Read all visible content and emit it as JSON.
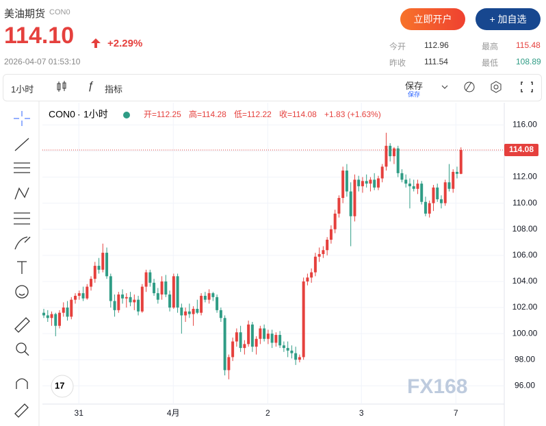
{
  "header": {
    "title": "美油期货",
    "code": "CON0",
    "price": "114.10",
    "change": "+2.29%",
    "timestamp": "2026-04-07 01:53:10",
    "open_account": "立即开户",
    "add_watch": "+ 加自选",
    "stats": [
      {
        "label": "今开",
        "value": "112.96"
      },
      {
        "label": "最高",
        "value": "115.48"
      },
      {
        "label": "昨收",
        "value": "111.54"
      },
      {
        "label": "最低",
        "value": "108.89"
      }
    ]
  },
  "toolbar": {
    "interval": "1小时",
    "indicators": "指标",
    "save": "保存",
    "save_sub": "保存"
  },
  "watermark": "FX168",
  "chart_data": {
    "type": "candlestick",
    "symbol": "CON0",
    "interval": "1小时",
    "legend": [
      "开=112.25",
      "高=114.28",
      "低=112.22",
      "收=114.08",
      "+1.83 (+1.63%)"
    ],
    "last_price": 114.08,
    "up_color": "#e5403d",
    "down_color": "#2f9c85",
    "ylim": [
      94.6,
      117.7
    ],
    "yticks": [
      {
        "value": 96,
        "label": "96.00"
      },
      {
        "value": 98,
        "label": "98.00"
      },
      {
        "value": 100,
        "label": "100.00"
      },
      {
        "value": 102,
        "label": "102.00"
      },
      {
        "value": 104,
        "label": "104.00"
      },
      {
        "value": 106,
        "label": "106.00"
      },
      {
        "value": 108,
        "label": "108.00"
      },
      {
        "value": 110,
        "label": "110.00"
      },
      {
        "value": 112,
        "label": "112.00"
      },
      {
        "value": 114,
        "label": "114.00"
      },
      {
        "value": 116,
        "label": "116.00"
      }
    ],
    "xlim": [
      -0.35,
      117
    ],
    "xticks": [
      {
        "value": 8.9,
        "label": "31"
      },
      {
        "value": 32.9,
        "label": "4月"
      },
      {
        "value": 56.9,
        "label": "2"
      },
      {
        "value": 80.7,
        "label": "3"
      },
      {
        "value": 104.7,
        "label": "7"
      }
    ],
    "grid": true,
    "candles": [
      [
        101.6,
        101.9,
        101.2,
        101.4
      ],
      [
        101.4,
        101.8,
        100.9,
        101.2
      ],
      [
        101.2,
        101.7,
        100.6,
        101.5
      ],
      [
        101.5,
        101.6,
        99.8,
        100.6
      ],
      [
        100.6,
        101.8,
        100.4,
        101.6
      ],
      [
        101.6,
        102.4,
        101.3,
        102.0
      ],
      [
        102.0,
        102.5,
        101.0,
        101.3
      ],
      [
        101.3,
        102.8,
        101.1,
        102.6
      ],
      [
        102.6,
        103.1,
        102.3,
        102.9
      ],
      [
        102.9,
        103.3,
        102.6,
        103.1
      ],
      [
        103.1,
        103.6,
        102.5,
        102.7
      ],
      [
        102.7,
        103.8,
        102.6,
        103.6
      ],
      [
        103.6,
        104.4,
        103.3,
        104.2
      ],
      [
        104.2,
        105.5,
        103.9,
        105.2
      ],
      [
        105.2,
        105.8,
        104.6,
        104.9
      ],
      [
        104.9,
        106.9,
        104.7,
        106.2
      ],
      [
        106.2,
        106.6,
        104.2,
        104.4
      ],
      [
        104.4,
        104.6,
        102.0,
        102.5
      ],
      [
        102.5,
        103.0,
        101.3,
        101.8
      ],
      [
        101.8,
        103.2,
        101.6,
        103.0
      ],
      [
        103.0,
        103.4,
        102.3,
        102.7
      ],
      [
        102.7,
        103.1,
        102.0,
        102.8
      ],
      [
        102.8,
        103.2,
        102.1,
        102.4
      ],
      [
        102.4,
        103.0,
        101.8,
        102.6
      ],
      [
        102.6,
        102.9,
        101.4,
        101.7
      ],
      [
        101.7,
        103.8,
        101.6,
        103.6
      ],
      [
        103.6,
        104.9,
        103.2,
        104.7
      ],
      [
        104.7,
        104.9,
        103.6,
        103.9
      ],
      [
        103.9,
        104.2,
        102.9,
        103.1
      ],
      [
        103.1,
        103.5,
        102.3,
        102.6
      ],
      [
        103.0,
        104.4,
        102.6,
        104.0
      ],
      [
        104.0,
        104.5,
        102.8,
        103.0
      ],
      [
        103.0,
        103.3,
        101.7,
        102.0
      ],
      [
        102.0,
        104.6,
        101.9,
        104.4
      ],
      [
        104.4,
        104.6,
        101.6,
        102.0
      ],
      [
        102.0,
        102.3,
        100.0,
        101.4
      ],
      [
        101.4,
        102.0,
        100.9,
        101.7
      ],
      [
        101.7,
        102.3,
        101.2,
        101.5
      ],
      [
        101.5,
        102.1,
        100.6,
        101.9
      ],
      [
        101.9,
        102.6,
        101.5,
        101.6
      ],
      [
        101.6,
        103.1,
        101.4,
        102.9
      ],
      [
        102.9,
        103.2,
        102.4,
        102.6
      ],
      [
        102.6,
        103.4,
        102.3,
        103.1
      ],
      [
        103.1,
        103.2,
        102.5,
        102.8
      ],
      [
        102.8,
        103.0,
        101.6,
        101.8
      ],
      [
        101.8,
        102.0,
        100.9,
        101.2
      ],
      [
        101.2,
        101.4,
        96.8,
        97.2
      ],
      [
        97.2,
        98.4,
        96.5,
        98.2
      ],
      [
        98.2,
        99.7,
        97.9,
        99.4
      ],
      [
        99.4,
        100.4,
        99.0,
        100.1
      ],
      [
        100.1,
        100.6,
        98.6,
        98.9
      ],
      [
        98.9,
        99.5,
        98.4,
        99.2
      ],
      [
        99.2,
        101.0,
        99.0,
        100.7
      ],
      [
        100.7,
        100.9,
        98.6,
        99.0
      ],
      [
        99.0,
        99.8,
        98.4,
        99.6
      ],
      [
        99.6,
        100.6,
        99.2,
        100.4
      ],
      [
        100.4,
        100.7,
        99.4,
        99.6
      ],
      [
        99.6,
        100.3,
        99.2,
        100.0
      ],
      [
        100.0,
        100.3,
        98.9,
        99.3
      ],
      [
        99.3,
        100.1,
        99.0,
        99.9
      ],
      [
        99.9,
        100.2,
        98.9,
        99.1
      ],
      [
        99.1,
        99.4,
        98.6,
        98.9
      ],
      [
        98.9,
        99.4,
        98.2,
        98.7
      ],
      [
        98.7,
        99.1,
        98.1,
        98.5
      ],
      [
        98.5,
        99.0,
        97.6,
        98.0
      ],
      [
        98.0,
        98.4,
        97.8,
        98.2
      ],
      [
        98.2,
        104.3,
        98.0,
        104.0
      ],
      [
        104.0,
        104.6,
        103.7,
        104.3
      ],
      [
        104.3,
        105.0,
        103.9,
        104.7
      ],
      [
        104.7,
        106.2,
        104.4,
        105.9
      ],
      [
        105.9,
        106.6,
        105.5,
        106.1
      ],
      [
        106.1,
        106.7,
        105.8,
        106.4
      ],
      [
        106.4,
        107.4,
        106.0,
        107.2
      ],
      [
        107.2,
        108.3,
        106.9,
        108.0
      ],
      [
        108.0,
        109.5,
        107.7,
        109.2
      ],
      [
        109.2,
        110.6,
        108.9,
        110.4
      ],
      [
        110.4,
        112.8,
        110.0,
        112.5
      ],
      [
        112.5,
        113.0,
        110.5,
        110.9
      ],
      [
        110.9,
        111.6,
        106.7,
        109.0
      ],
      [
        109.0,
        112.2,
        108.6,
        111.8
      ],
      [
        111.8,
        112.1,
        110.9,
        111.3
      ],
      [
        111.3,
        112.0,
        110.8,
        111.7
      ],
      [
        111.7,
        112.2,
        111.2,
        111.5
      ],
      [
        111.5,
        112.0,
        110.9,
        111.8
      ],
      [
        111.8,
        112.3,
        111.0,
        111.2
      ],
      [
        111.2,
        112.1,
        111.0,
        111.9
      ],
      [
        111.9,
        113.0,
        111.6,
        112.8
      ],
      [
        112.8,
        115.4,
        112.5,
        114.4
      ],
      [
        114.4,
        114.6,
        113.2,
        113.6
      ],
      [
        113.6,
        114.3,
        113.0,
        114.2
      ],
      [
        114.2,
        114.4,
        112.0,
        112.3
      ],
      [
        112.3,
        112.6,
        111.6,
        111.8
      ],
      [
        111.8,
        112.2,
        111.2,
        111.5
      ],
      [
        111.5,
        111.9,
        109.6,
        111.3
      ],
      [
        111.3,
        111.8,
        110.9,
        111.1
      ],
      [
        111.1,
        111.8,
        110.7,
        111.5
      ],
      [
        111.5,
        111.7,
        109.9,
        110.1
      ],
      [
        110.1,
        110.5,
        109.0,
        109.2
      ],
      [
        109.2,
        110.2,
        108.9,
        110.0
      ],
      [
        110.0,
        111.4,
        109.4,
        111.2
      ],
      [
        111.2,
        111.5,
        110.1,
        110.3
      ],
      [
        110.3,
        110.6,
        109.6,
        110.0
      ],
      [
        110.0,
        111.8,
        109.8,
        111.6
      ],
      [
        111.6,
        113.0,
        110.9,
        111.1
      ],
      [
        111.1,
        112.6,
        110.8,
        112.4
      ],
      [
        112.4,
        112.8,
        111.9,
        112.25
      ],
      [
        112.25,
        114.28,
        112.22,
        114.08
      ]
    ]
  }
}
